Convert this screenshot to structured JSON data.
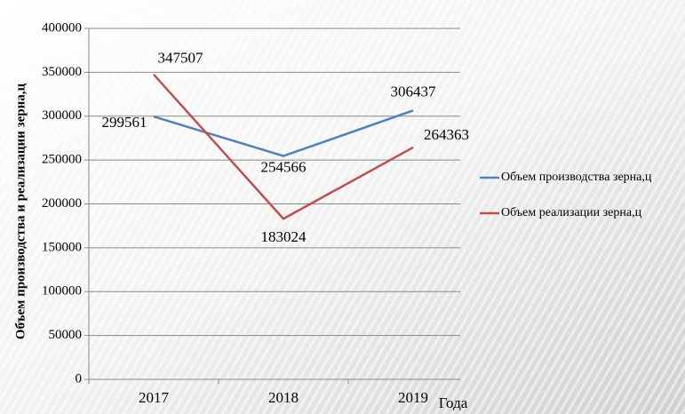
{
  "chart_data": {
    "type": "line",
    "categories": [
      "2017",
      "2018",
      "2019"
    ],
    "series": [
      {
        "name": "Объем производства зерна,ц",
        "color": "#4f81bd",
        "values": [
          299561,
          254566,
          306437
        ]
      },
      {
        "name": "Объем реализации зерна,ц",
        "color": "#c0504d",
        "values": [
          347507,
          183024,
          264363
        ]
      }
    ],
    "ylim": [
      0,
      400000
    ],
    "yticks": [
      0,
      50000,
      100000,
      150000,
      200000,
      250000,
      300000,
      350000,
      400000
    ],
    "ylabel": "Объем производства и реализации зерна,ц",
    "xlabel": "Года",
    "grid": true,
    "legend": "right"
  }
}
